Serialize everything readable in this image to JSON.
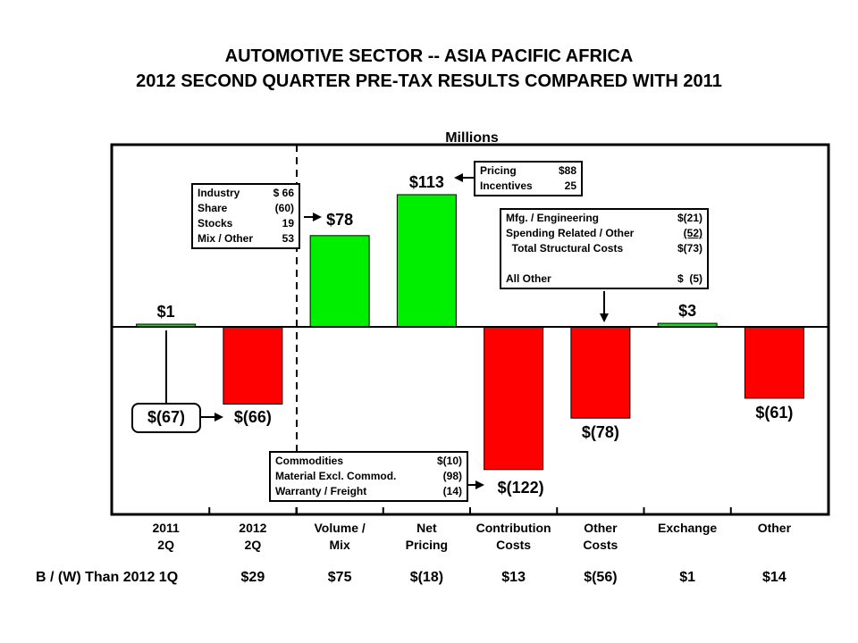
{
  "title": "AUTOMOTIVE SECTOR -- ASIA PACIFIC AFRICA",
  "subtitle": "2012 SECOND QUARTER PRE-TAX RESULTS COMPARED WITH 2011",
  "units_label": "Millions",
  "chart_data": {
    "type": "bar",
    "title": "AUTOMOTIVE SECTOR -- ASIA PACIFIC AFRICA",
    "subtitle": "2012 SECOND QUARTER PRE-TAX RESULTS COMPARED WITH 2011",
    "ylabel": "Millions",
    "categories": [
      "2011\n2Q",
      "2012\n2Q",
      "Volume /\nMix",
      "Net\nPricing",
      "Contribution\nCosts",
      "Other\nCosts",
      "Exchange",
      "Other"
    ],
    "values": [
      1,
      -66,
      78,
      113,
      -122,
      -78,
      3,
      -61
    ],
    "value_labels": [
      "$1",
      "$(66)",
      "$78",
      "$113",
      "$(122)",
      "$(78)",
      "$3",
      "$(61)"
    ],
    "colors": [
      "#00ee00",
      "#ff0000",
      "#00ee00",
      "#00ee00",
      "#ff0000",
      "#ff0000",
      "#00ee00",
      "#ff0000"
    ],
    "ylim": [
      -160,
      150
    ],
    "grid": false,
    "annotations": {
      "change_2011_to_2012": "$(67)",
      "b_w_label": "B / (W) Than 2012 1Q",
      "b_w_values": [
        "",
        "$29",
        "$75",
        "$(18)",
        "$13",
        "$(56)",
        "$1",
        "$14"
      ]
    }
  },
  "callouts": {
    "volume_mix": [
      {
        "label": "Industry",
        "value": "$ 66"
      },
      {
        "label": "Share",
        "value": "(60)"
      },
      {
        "label": "Stocks",
        "value": "19"
      },
      {
        "label": "Mix / Other",
        "value": "53"
      }
    ],
    "net_pricing": [
      {
        "label": "Pricing",
        "value": "$88"
      },
      {
        "label": "Incentives",
        "value": "25"
      }
    ],
    "other_costs": [
      {
        "label": "Mfg. / Engineering",
        "value": "$(21)"
      },
      {
        "label": "Spending Related / Other",
        "value": "(52)"
      },
      {
        "label": "  Total Structural Costs",
        "value": "$(73)"
      },
      {
        "label": "",
        "value": ""
      },
      {
        "label": "All Other",
        "value": "$  (5)"
      }
    ],
    "contribution_costs": [
      {
        "label": "Commodities",
        "value": "$(10)"
      },
      {
        "label": "Material Excl. Commod.",
        "value": "(98)"
      },
      {
        "label": "Warranty / Freight",
        "value": "(14)"
      }
    ]
  },
  "colors": {
    "positive": "#00ee00",
    "negative": "#ff0000"
  }
}
